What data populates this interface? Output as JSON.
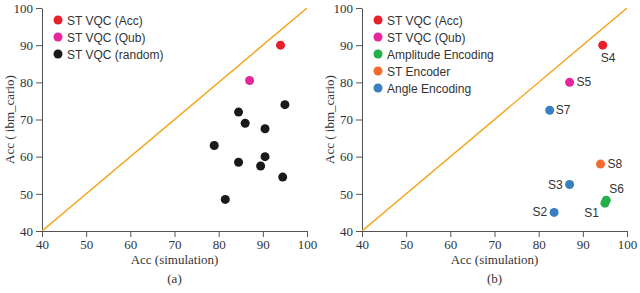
{
  "chart_data": [
    {
      "type": "scatter",
      "xlabel": "Acc (simulation)",
      "ylabel": "Acc ( ibm_cario)",
      "caption": "(a)",
      "xlim": [
        40,
        100
      ],
      "ylim": [
        40,
        100
      ],
      "xticks": [
        40,
        50,
        60,
        70,
        80,
        90,
        100
      ],
      "yticks": [
        40,
        50,
        60,
        70,
        80,
        90,
        100
      ],
      "legend": "top-left",
      "series": [
        {
          "name": "ST VQC (Acc)",
          "color": "#e8202a",
          "x": [
            94
          ],
          "y": [
            90
          ]
        },
        {
          "name": "ST VQC (Qub)",
          "color": "#e6259a",
          "x": [
            87
          ],
          "y": [
            80.5
          ]
        },
        {
          "name": "ST VQC (random)",
          "color": "#1a1a1a",
          "x": [
            79,
            81.5,
            84.5,
            84.5,
            86,
            89.5,
            90.5,
            90.5,
            94.5,
            95
          ],
          "y": [
            63,
            48.5,
            72,
            58.5,
            69,
            57.5,
            67.5,
            60,
            54.5,
            74
          ]
        }
      ]
    },
    {
      "type": "scatter",
      "xlabel": "Acc (simulation)",
      "ylabel": "Acc ( ibm_cario)",
      "caption": "(b)",
      "xlim": [
        40,
        100
      ],
      "ylim": [
        40,
        100
      ],
      "xticks": [
        40,
        50,
        60,
        70,
        80,
        90,
        100
      ],
      "yticks": [
        40,
        50,
        60,
        70,
        80,
        90,
        100
      ],
      "legend": "top-left",
      "series": [
        {
          "name": "ST VQC (Acc)",
          "color": "#e8202a",
          "x": [
            94.5
          ],
          "y": [
            90
          ],
          "labels": [
            "S4"
          ]
        },
        {
          "name": "ST VQC (Qub)",
          "color": "#e6259a",
          "x": [
            87
          ],
          "y": [
            80
          ],
          "labels": [
            "S5"
          ]
        },
        {
          "name": "Amplitude Encoding",
          "color": "#22b04b",
          "x": [
            95,
            95.3
          ],
          "y": [
            47.5,
            48.3
          ],
          "labels": [
            "S1",
            "S6"
          ]
        },
        {
          "name": "ST Encoder",
          "color": "#f26a2e",
          "x": [
            94
          ],
          "y": [
            58
          ],
          "labels": [
            "S8"
          ]
        },
        {
          "name": "Angle Encoding",
          "color": "#3a7fc1",
          "x": [
            83.5,
            87,
            82.5
          ],
          "y": [
            45,
            52.5,
            72.5
          ],
          "labels": [
            "S2",
            "S3",
            "S7"
          ]
        }
      ]
    }
  ]
}
